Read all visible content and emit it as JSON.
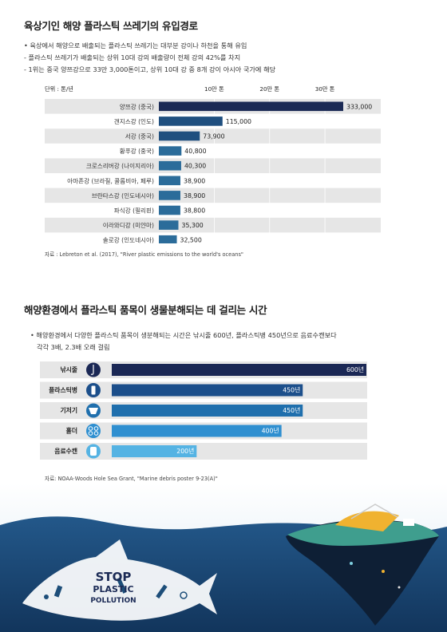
{
  "section1": {
    "title": "육상기인 해양 플라스틱 쓰레기의 유입경로",
    "bullets": [
      "• 육상에서 해양으로 배출되는 플라스틱 쓰레기는 대부분 강이나 하천을 통해 유입",
      "- 플라스틱 쓰레기가 배출되는 상위 10대 강의 배출량이 전체 강의 42%를 차지",
      "- 1위는 중국 양쯔강으로 33만 3,000톤이고, 상위 10대 강 중 8개 강이 아시아 국가에 해당"
    ],
    "source": "자료 : Lebreton et al. (2017), \"River plastic emissions to the world's oceans\""
  },
  "section2": {
    "title": "해양환경에서 플라스틱 품목이 생물분해되는 데 걸리는 시간",
    "bullets": [
      "• 해양환경에서 다양한 플라스틱 품목이 생분해되는 시간은 낚시줄 600년, 플라스틱병 450년으로 음료수캔보다",
      "각각 3배, 2.3배 오래 걸림"
    ],
    "source": "자료: NOAA·Woods Hole Sea Grant, \"Marine debris poster 9-23(A)\""
  },
  "illustration": {
    "text_lines": [
      "STOP",
      "PLASTIC",
      "POLLUTION"
    ]
  },
  "colors": {
    "bar_dark": "#1b2a55",
    "bar_mid": "#1f4f7f",
    "bar_light": "#2b6c9a",
    "row_bg": "#e6e6e6",
    "deg1": "#1b2855",
    "deg2": "#1c4f8b",
    "deg3": "#1f6fad",
    "deg4": "#2f8fd0",
    "deg5": "#55b3e3",
    "ocean": "#1d4e79"
  },
  "chart_data": [
    {
      "type": "bar",
      "orientation": "horizontal",
      "unit_label": "단위 : 톤/년",
      "axis_ticks": [
        {
          "value": 100000,
          "label": "10만 톤"
        },
        {
          "value": 200000,
          "label": "20만 톤"
        },
        {
          "value": 300000,
          "label": "30만 톤"
        }
      ],
      "xlim": [
        0,
        333000
      ],
      "categories": [
        "양쯔강 (중국)",
        "갠지스강 (인도)",
        "서강 (중국)",
        "황푸강 (중국)",
        "크로스리버강 (나이지리아)",
        "아마존강 (브라질, 콜롬비아, 페루)",
        "브란타스강 (인도네시아)",
        "파식강 (필리핀)",
        "이라와디강 (미얀마)",
        "솔로강 (인도네시아)"
      ],
      "values": [
        333000,
        115000,
        73900,
        40800,
        40300,
        38900,
        38900,
        38800,
        35300,
        32500
      ],
      "value_labels": [
        "333,000",
        "115,000",
        "73,900",
        "40,800",
        "40,300",
        "38,900",
        "38,900",
        "38,800",
        "35,300",
        "32,500"
      ],
      "grid": true
    },
    {
      "type": "bar",
      "orientation": "horizontal",
      "categories": [
        "낚시줄",
        "플라스틱병",
        "기저기",
        "홀더",
        "음료수캔"
      ],
      "icons": [
        "fishing-hook-icon",
        "plastic-bottle-icon",
        "diaper-icon",
        "six-pack-holder-icon",
        "beverage-can-icon"
      ],
      "values": [
        600,
        450,
        450,
        400,
        200
      ],
      "value_labels": [
        "600년",
        "450년",
        "450년",
        "400년",
        "200년"
      ],
      "xlim": [
        0,
        600
      ]
    }
  ]
}
